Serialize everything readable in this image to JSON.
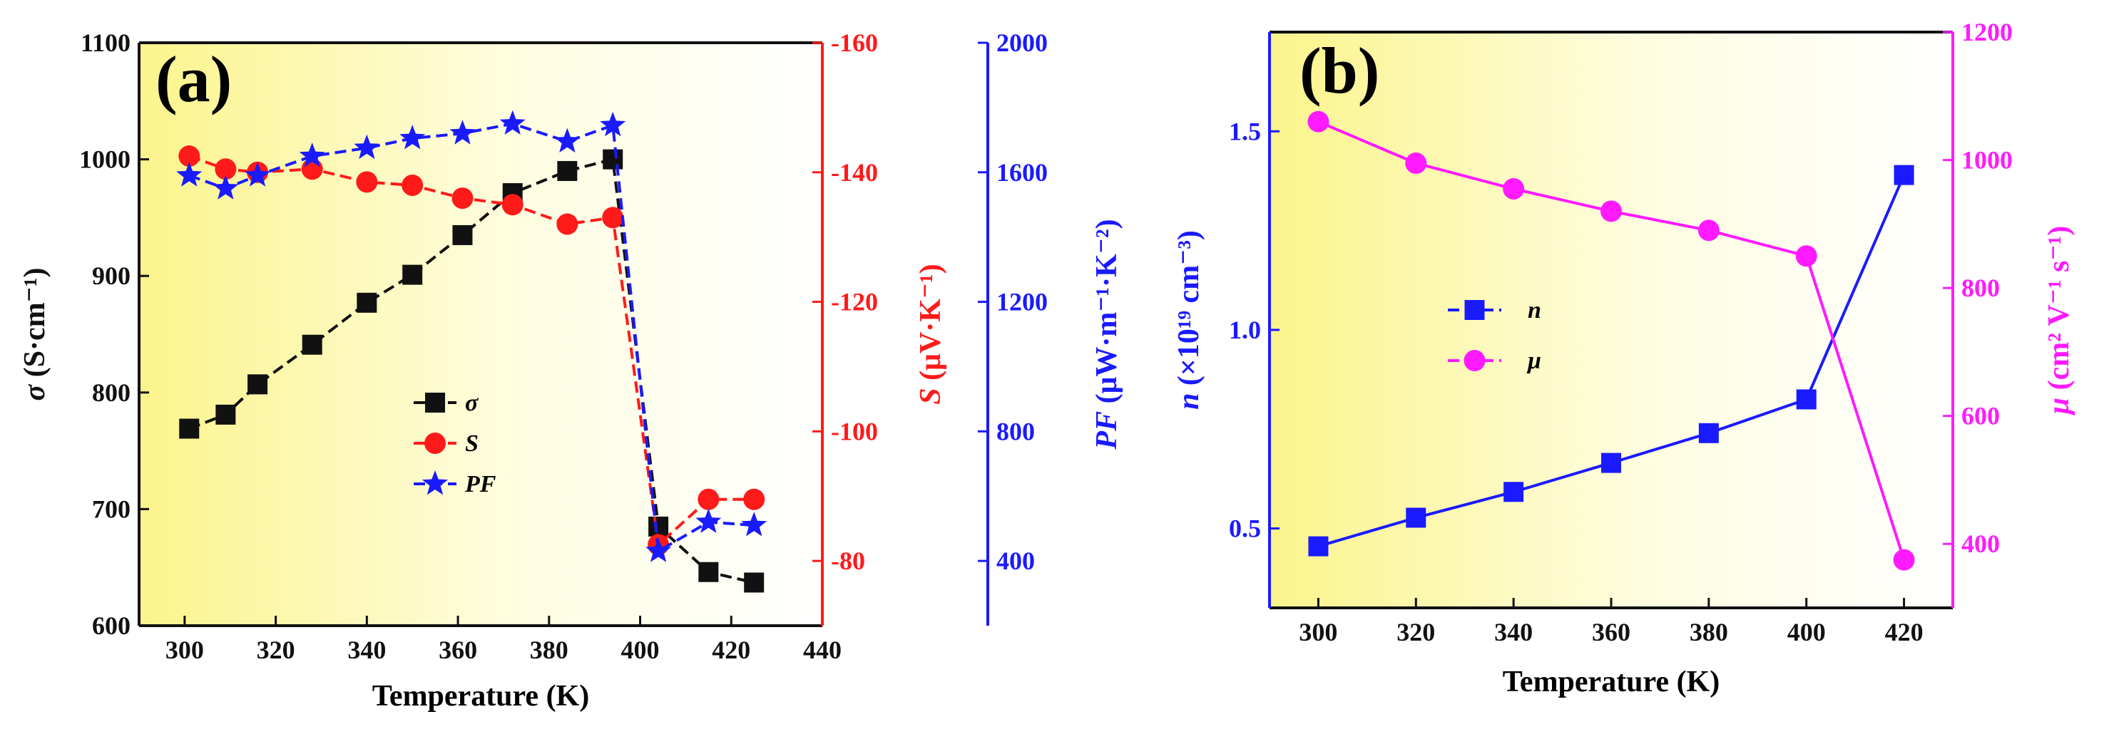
{
  "chart_data": [
    {
      "panel_label": "(a)",
      "type": "line",
      "x": {
        "label": "Temperature (K)",
        "range": [
          290,
          440
        ],
        "ticks": [
          "300",
          "320",
          "340",
          "360",
          "380",
          "400",
          "420",
          "440"
        ]
      },
      "axes": {
        "left": {
          "label": "σ (S·cm⁻¹)",
          "label_italic_part": "σ",
          "label_rest": " (S·cm⁻¹)",
          "range": [
            600,
            1100
          ],
          "ticks": [
            "600",
            "700",
            "800",
            "900",
            "1000",
            "1100"
          ],
          "color": "#111111"
        },
        "right1": {
          "label": "S (μV·K⁻¹)",
          "label_italic_part": "S",
          "label_rest": " (μV·K⁻¹)",
          "range": [
            -70,
            -160
          ],
          "ticks": [
            "-80",
            "-100",
            "-120",
            "-140",
            "-160"
          ],
          "color": "#ff1a1a"
        },
        "right2": {
          "label": "PF (μW·m⁻¹·K⁻²)",
          "label_italic_part": "PF",
          "label_rest": " (μW·m⁻¹·K⁻²)",
          "range": [
            200,
            2000
          ],
          "ticks": [
            "400",
            "800",
            "1200",
            "1600",
            "2000"
          ],
          "color": "#1a1aff"
        }
      },
      "series": [
        {
          "name": "σ",
          "axis": "left",
          "color": "#111111",
          "marker": "square",
          "x": [
            301,
            309,
            316,
            328,
            340,
            350,
            361,
            372,
            384,
            394,
            404,
            415,
            425
          ],
          "values": [
            769,
            781,
            807,
            841,
            877,
            901,
            935,
            971,
            990,
            1000,
            685,
            646,
            637
          ]
        },
        {
          "name": "S",
          "axis": "right1",
          "color": "#ff1a1a",
          "marker": "circle",
          "x": [
            301,
            309,
            316,
            328,
            340,
            350,
            361,
            372,
            384,
            394,
            404,
            415,
            425
          ],
          "values": [
            -142.5,
            -140.5,
            -140.0,
            -140.5,
            -138.5,
            -138.0,
            -136.0,
            -135.0,
            -132.0,
            -133.0,
            -82.5,
            -89.5,
            -89.5
          ]
        },
        {
          "name": "PF",
          "axis": "right2",
          "color": "#1a1aff",
          "marker": "star",
          "x": [
            301,
            309,
            316,
            328,
            340,
            350,
            361,
            372,
            384,
            394,
            404,
            415,
            425
          ],
          "values": [
            1590,
            1550,
            1590,
            1650,
            1675,
            1705,
            1720,
            1750,
            1695,
            1745,
            430,
            520,
            510
          ]
        }
      ],
      "legend": [
        "σ",
        "S",
        "PF"
      ],
      "legend_position": "center-left"
    },
    {
      "panel_label": "(b)",
      "type": "line",
      "x": {
        "label": "Temperature (K)",
        "range": [
          290,
          430
        ],
        "ticks": [
          "300",
          "320",
          "340",
          "360",
          "380",
          "400",
          "420"
        ]
      },
      "axes": {
        "left": {
          "label": "n (×10¹⁹ cm⁻³)",
          "label_italic_part": "n",
          "label_rest": " (×10¹⁹ cm⁻³)",
          "range": [
            0.3,
            1.75
          ],
          "ticks": [
            "0.5",
            "1.0",
            "1.5"
          ],
          "color": "#1a1aff"
        },
        "right": {
          "label": "μ (cm² V⁻¹ s⁻¹)",
          "label_italic_part": "μ",
          "label_rest": " (cm² V⁻¹ s⁻¹)",
          "range": [
            300,
            1200
          ],
          "ticks": [
            "400",
            "600",
            "800",
            "1000",
            "1200"
          ],
          "color": "#ff1aff"
        }
      },
      "series": [
        {
          "name": "n",
          "axis": "left",
          "color": "#1a1aff",
          "marker": "square",
          "x": [
            300,
            320,
            340,
            360,
            380,
            400,
            420
          ],
          "values": [
            0.455,
            0.527,
            0.592,
            0.665,
            0.74,
            0.825,
            1.39
          ]
        },
        {
          "name": "μ",
          "axis": "right",
          "color": "#ff1aff",
          "marker": "circle",
          "x": [
            300,
            320,
            340,
            360,
            380,
            400,
            420
          ],
          "values": [
            1060,
            995,
            955,
            920,
            890,
            850,
            375
          ]
        }
      ],
      "legend": [
        "n",
        "μ"
      ],
      "legend_position": "center-left"
    }
  ]
}
